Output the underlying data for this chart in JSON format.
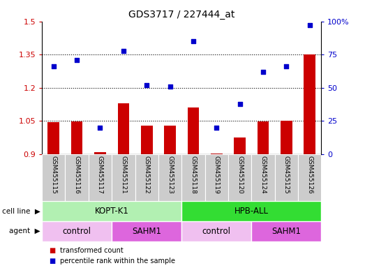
{
  "title": "GDS3717 / 227444_at",
  "samples": [
    "GSM455115",
    "GSM455116",
    "GSM455117",
    "GSM455121",
    "GSM455122",
    "GSM455123",
    "GSM455118",
    "GSM455119",
    "GSM455120",
    "GSM455124",
    "GSM455125",
    "GSM455126"
  ],
  "bar_values": [
    1.045,
    1.047,
    0.908,
    1.13,
    1.03,
    1.028,
    1.11,
    0.902,
    0.975,
    1.047,
    1.052,
    1.35
  ],
  "dot_values": [
    66,
    71,
    20,
    78,
    52,
    51,
    85,
    20,
    38,
    62,
    66,
    97
  ],
  "bar_color": "#cc0000",
  "dot_color": "#0000cc",
  "ylim_left": [
    0.9,
    1.5
  ],
  "ylim_right": [
    0,
    100
  ],
  "yticks_left": [
    0.9,
    1.05,
    1.2,
    1.35,
    1.5
  ],
  "yticks_right": [
    0,
    25,
    50,
    75,
    100
  ],
  "ytick_labels_right": [
    "0",
    "25",
    "50",
    "75",
    "100%"
  ],
  "hgrid_lines": [
    1.05,
    1.2,
    1.35
  ],
  "cell_line_groups": [
    {
      "label": "KOPT-K1",
      "start": 0,
      "end": 6,
      "color": "#b2f0b2"
    },
    {
      "label": "HPB-ALL",
      "start": 6,
      "end": 12,
      "color": "#33dd33"
    }
  ],
  "agent_groups": [
    {
      "label": "control",
      "start": 0,
      "end": 3,
      "color": "#f0c0f0"
    },
    {
      "label": "SAHM1",
      "start": 3,
      "end": 6,
      "color": "#dd66dd"
    },
    {
      "label": "control",
      "start": 6,
      "end": 9,
      "color": "#f0c0f0"
    },
    {
      "label": "SAHM1",
      "start": 9,
      "end": 12,
      "color": "#dd66dd"
    }
  ],
  "legend_items": [
    {
      "label": "transformed count",
      "color": "#cc0000"
    },
    {
      "label": "percentile rank within the sample",
      "color": "#0000cc"
    }
  ],
  "cell_line_label": "cell line",
  "agent_label": "agent",
  "tick_area_color": "#cccccc"
}
